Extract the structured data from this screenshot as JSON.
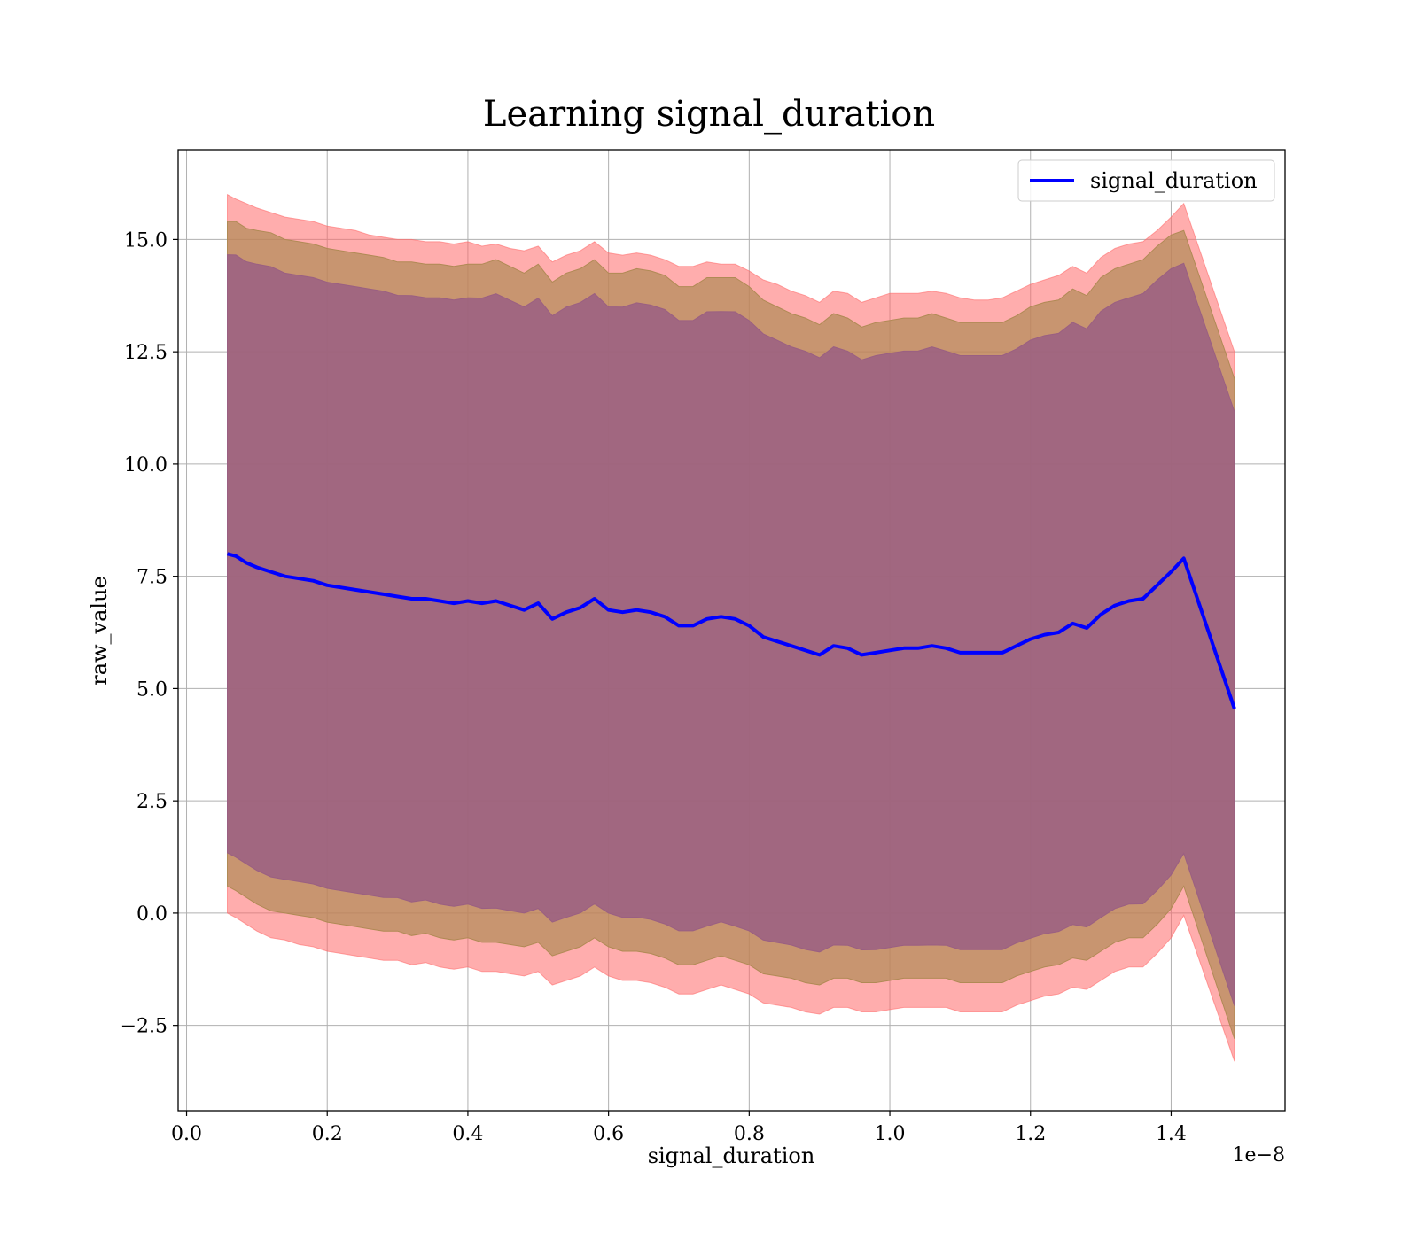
{
  "chart_data": {
    "type": "line",
    "title": "Learning signal_duration",
    "xlabel": "signal_duration",
    "ylabel": "raw_value",
    "x_offset_text": "1e−8",
    "xlim": [
      -0.012,
      1.562
    ],
    "ylim": [
      -4.4,
      17.0
    ],
    "grid": true,
    "legend_position": "upper right",
    "x_ticks": [
      0.0,
      0.2,
      0.4,
      0.6,
      0.8,
      1.0,
      1.2,
      1.4
    ],
    "x_tick_labels": [
      "0.0",
      "0.2",
      "0.4",
      "0.6",
      "0.8",
      "1.0",
      "1.2",
      "1.4"
    ],
    "y_ticks": [
      -2.5,
      0.0,
      2.5,
      5.0,
      7.5,
      10.0,
      12.5,
      15.0
    ],
    "y_tick_labels": [
      "−2.5",
      "0.0",
      "2.5",
      "5.0",
      "7.5",
      "10.0",
      "12.5",
      "15.0"
    ],
    "series": [
      {
        "name": "signal_duration",
        "color": "#0000ff",
        "x": [
          0.058,
          0.07,
          0.085,
          0.1,
          0.12,
          0.14,
          0.16,
          0.18,
          0.2,
          0.22,
          0.24,
          0.26,
          0.28,
          0.3,
          0.32,
          0.34,
          0.36,
          0.38,
          0.4,
          0.42,
          0.44,
          0.46,
          0.48,
          0.5,
          0.52,
          0.54,
          0.56,
          0.58,
          0.6,
          0.62,
          0.64,
          0.66,
          0.68,
          0.7,
          0.72,
          0.74,
          0.76,
          0.78,
          0.8,
          0.82,
          0.84,
          0.86,
          0.88,
          0.9,
          0.92,
          0.94,
          0.96,
          0.98,
          1.0,
          1.02,
          1.04,
          1.06,
          1.08,
          1.1,
          1.12,
          1.14,
          1.16,
          1.18,
          1.2,
          1.22,
          1.24,
          1.26,
          1.28,
          1.3,
          1.32,
          1.34,
          1.36,
          1.38,
          1.4,
          1.418,
          1.49
        ],
        "values": [
          8.0,
          7.95,
          7.8,
          7.7,
          7.6,
          7.5,
          7.45,
          7.4,
          7.3,
          7.25,
          7.2,
          7.15,
          7.1,
          7.05,
          7.0,
          7.0,
          6.95,
          6.9,
          6.95,
          6.9,
          6.95,
          6.85,
          6.75,
          6.9,
          6.55,
          6.7,
          6.8,
          7.0,
          6.75,
          6.7,
          6.75,
          6.7,
          6.6,
          6.4,
          6.4,
          6.55,
          6.6,
          6.55,
          6.4,
          6.15,
          6.05,
          5.95,
          5.85,
          5.75,
          5.95,
          5.9,
          5.75,
          5.8,
          5.85,
          5.9,
          5.9,
          5.95,
          5.9,
          5.8,
          5.8,
          5.8,
          5.8,
          5.95,
          6.1,
          6.2,
          6.25,
          6.45,
          6.35,
          6.65,
          6.85,
          6.95,
          7.0,
          7.3,
          7.6,
          7.9,
          4.55
        ]
      }
    ],
    "bands": [
      {
        "color": "#ff6a6a",
        "opacity": 0.55,
        "lower": [
          0.0,
          -0.1,
          -0.25,
          -0.4,
          -0.55,
          -0.6,
          -0.7,
          -0.75,
          -0.85,
          -0.9,
          -0.95,
          -1.0,
          -1.05,
          -1.05,
          -1.15,
          -1.1,
          -1.2,
          -1.25,
          -1.2,
          -1.3,
          -1.3,
          -1.35,
          -1.4,
          -1.3,
          -1.6,
          -1.5,
          -1.4,
          -1.2,
          -1.4,
          -1.5,
          -1.5,
          -1.55,
          -1.65,
          -1.8,
          -1.8,
          -1.7,
          -1.6,
          -1.7,
          -1.8,
          -2.0,
          -2.05,
          -2.1,
          -2.2,
          -2.25,
          -2.1,
          -2.1,
          -2.2,
          -2.2,
          -2.15,
          -2.1,
          -2.1,
          -2.1,
          -2.1,
          -2.2,
          -2.2,
          -2.2,
          -2.2,
          -2.05,
          -1.95,
          -1.85,
          -1.8,
          -1.65,
          -1.7,
          -1.5,
          -1.3,
          -1.2,
          -1.2,
          -0.9,
          -0.55,
          -0.05,
          -3.3
        ],
        "upper": [
          16.0,
          15.9,
          15.8,
          15.7,
          15.6,
          15.5,
          15.45,
          15.4,
          15.3,
          15.25,
          15.2,
          15.1,
          15.05,
          15.0,
          15.0,
          14.95,
          14.95,
          14.9,
          14.95,
          14.85,
          14.9,
          14.8,
          14.75,
          14.85,
          14.5,
          14.65,
          14.75,
          14.95,
          14.7,
          14.65,
          14.7,
          14.65,
          14.55,
          14.4,
          14.4,
          14.5,
          14.45,
          14.45,
          14.3,
          14.1,
          14.0,
          13.85,
          13.75,
          13.6,
          13.85,
          13.8,
          13.6,
          13.7,
          13.8,
          13.8,
          13.8,
          13.85,
          13.8,
          13.7,
          13.65,
          13.65,
          13.7,
          13.85,
          14.0,
          14.1,
          14.2,
          14.4,
          14.25,
          14.6,
          14.8,
          14.9,
          14.95,
          15.2,
          15.5,
          15.8,
          12.5
        ]
      },
      {
        "color": "#b08a55",
        "opacity": 0.7,
        "lower": [
          0.6,
          0.5,
          0.35,
          0.2,
          0.05,
          0.0,
          -0.05,
          -0.1,
          -0.2,
          -0.25,
          -0.3,
          -0.35,
          -0.4,
          -0.4,
          -0.5,
          -0.45,
          -0.55,
          -0.6,
          -0.55,
          -0.65,
          -0.65,
          -0.7,
          -0.75,
          -0.65,
          -0.95,
          -0.85,
          -0.75,
          -0.55,
          -0.75,
          -0.85,
          -0.85,
          -0.9,
          -1.0,
          -1.15,
          -1.15,
          -1.05,
          -0.95,
          -1.05,
          -1.15,
          -1.35,
          -1.4,
          -1.45,
          -1.55,
          -1.6,
          -1.45,
          -1.45,
          -1.55,
          -1.55,
          -1.5,
          -1.45,
          -1.45,
          -1.45,
          -1.45,
          -1.55,
          -1.55,
          -1.55,
          -1.55,
          -1.4,
          -1.3,
          -1.2,
          -1.15,
          -1.0,
          -1.05,
          -0.85,
          -0.65,
          -0.55,
          -0.55,
          -0.25,
          0.1,
          0.6,
          -2.8
        ]
      },
      {
        "color": "#9a5f82",
        "opacity": 0.85
      }
    ]
  }
}
